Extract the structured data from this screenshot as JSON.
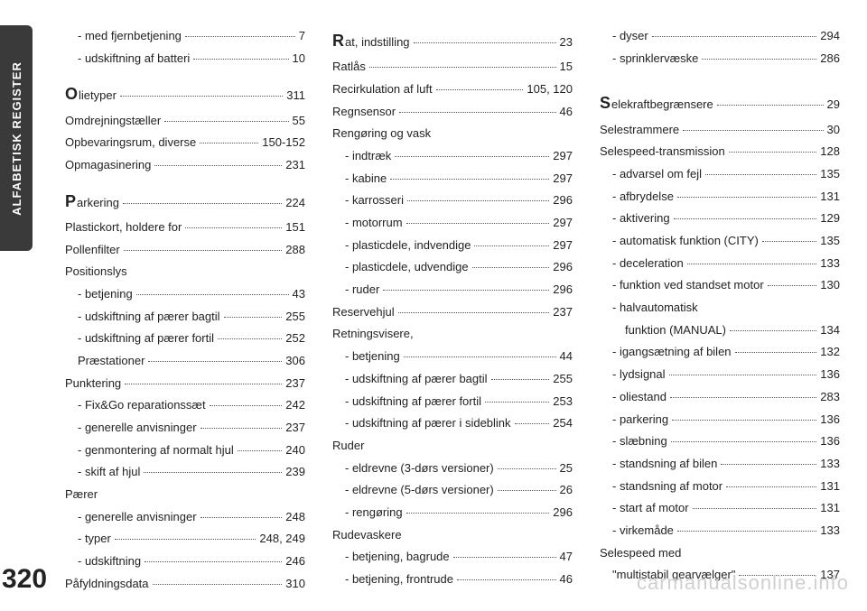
{
  "sideTab": "ALFABETISK REGISTER",
  "pageNumber": "320",
  "watermark": "carmanualsonline.info",
  "col1": [
    {
      "label": "- med fjernbetjening",
      "page": "7",
      "indent": 1
    },
    {
      "label": "- udskiftning af batteri",
      "page": "10",
      "indent": 1
    },
    {
      "type": "spacer"
    },
    {
      "cap": "O",
      "label": "lietyper",
      "page": "311"
    },
    {
      "label": "Omdrejningstæller",
      "page": "55"
    },
    {
      "label": "Opbevaringsrum, diverse",
      "page": "150-152"
    },
    {
      "label": "Opmagasinering",
      "page": "231"
    },
    {
      "type": "spacer"
    },
    {
      "cap": "P",
      "label": "arkering",
      "page": "224"
    },
    {
      "label": "Plastickort, holdere for",
      "page": "151"
    },
    {
      "label": "Pollenfilter",
      "page": "288"
    },
    {
      "label": "Positionslys",
      "nopg": true
    },
    {
      "label": "- betjening",
      "page": "43",
      "indent": 1
    },
    {
      "label": "- udskiftning af pærer bagtil",
      "page": "255",
      "indent": 1
    },
    {
      "label": "- udskiftning af pærer fortil",
      "page": "252",
      "indent": 1
    },
    {
      "label": "Præstationer",
      "page": "306",
      "indent": 1
    },
    {
      "label": "Punktering",
      "page": "237"
    },
    {
      "label": "- Fix&Go reparationssæt",
      "page": "242",
      "indent": 1
    },
    {
      "label": "- generelle anvisninger",
      "page": "237",
      "indent": 1
    },
    {
      "label": "- genmontering af normalt hjul",
      "page": "240",
      "indent": 1
    },
    {
      "label": "- skift af hjul",
      "page": "239",
      "indent": 1
    },
    {
      "label": "Pærer",
      "nopg": true
    },
    {
      "label": "- generelle anvisninger",
      "page": "248",
      "indent": 1
    },
    {
      "label": "- typer",
      "page": "248, 249",
      "indent": 1
    },
    {
      "label": "- udskiftning",
      "page": "246",
      "indent": 1
    },
    {
      "label": "Påfyldningsdata",
      "page": "310"
    }
  ],
  "col2": [
    {
      "cap": "R",
      "label": "at, indstilling",
      "page": "23"
    },
    {
      "label": "Ratlås",
      "page": "15"
    },
    {
      "label": "Recirkulation af luft",
      "page": "105, 120"
    },
    {
      "label": "Regnsensor",
      "page": "46"
    },
    {
      "label": "Rengøring og vask",
      "nopg": true
    },
    {
      "label": "- indtræk",
      "page": "297",
      "indent": 1
    },
    {
      "label": "- kabine",
      "page": "297",
      "indent": 1
    },
    {
      "label": "- karrosseri",
      "page": "296",
      "indent": 1
    },
    {
      "label": "- motorrum",
      "page": "297",
      "indent": 1
    },
    {
      "label": "- plasticdele, indvendige",
      "page": "297",
      "indent": 1
    },
    {
      "label": "- plasticdele, udvendige",
      "page": "296",
      "indent": 1
    },
    {
      "label": "- ruder",
      "page": "296",
      "indent": 1
    },
    {
      "label": "Reservehjul",
      "page": "237"
    },
    {
      "label": "Retningsvisere,",
      "nopg": true
    },
    {
      "label": "- betjening",
      "page": "44",
      "indent": 1
    },
    {
      "label": "- udskiftning af pærer bagtil",
      "page": "255",
      "indent": 1
    },
    {
      "label": "- udskiftning af pærer fortil",
      "page": "253",
      "indent": 1
    },
    {
      "label": "- udskiftning af pærer i sideblink",
      "page": "254",
      "indent": 1
    },
    {
      "label": "Ruder",
      "nopg": true
    },
    {
      "label": "- eldrevne (3-dørs versioner)",
      "page": "25",
      "indent": 1
    },
    {
      "label": "- eldrevne (5-dørs versioner)",
      "page": "26",
      "indent": 1
    },
    {
      "label": "- rengøring",
      "page": "296",
      "indent": 1
    },
    {
      "label": "Rudevaskere",
      "nopg": true
    },
    {
      "label": "- betjening, bagrude",
      "page": "47",
      "indent": 1
    },
    {
      "label": "- betjening, frontrude",
      "page": "46",
      "indent": 1
    }
  ],
  "col3": [
    {
      "label": "- dyser",
      "page": "294",
      "indent": 1
    },
    {
      "label": "- sprinklervæske",
      "page": "286",
      "indent": 1
    },
    {
      "type": "spacer"
    },
    {
      "type": "spacer"
    },
    {
      "cap": "S",
      "label": "elekraftbegrænsere",
      "page": "29"
    },
    {
      "label": "Selestrammere",
      "page": "30"
    },
    {
      "label": "Selespeed-transmission",
      "page": "128"
    },
    {
      "label": "- advarsel om fejl",
      "page": "135",
      "indent": 1
    },
    {
      "label": "- afbrydelse",
      "page": "131",
      "indent": 1
    },
    {
      "label": "- aktivering",
      "page": "129",
      "indent": 1
    },
    {
      "label": "- automatisk funktion (CITY)",
      "page": "135",
      "indent": 1
    },
    {
      "label": "- deceleration",
      "page": "133",
      "indent": 1
    },
    {
      "label": "- funktion ved standset motor",
      "page": "130",
      "indent": 1
    },
    {
      "label": "- halvautomatisk",
      "nopg": true,
      "indent": 1
    },
    {
      "label": "funktion (MANUAL)",
      "page": "134",
      "indent": 2
    },
    {
      "label": "- igangsætning af bilen",
      "page": "132",
      "indent": 1
    },
    {
      "label": "- lydsignal",
      "page": "136",
      "indent": 1
    },
    {
      "label": "- oliestand",
      "page": "283",
      "indent": 1
    },
    {
      "label": "- parkering",
      "page": "136",
      "indent": 1
    },
    {
      "label": "- slæbning",
      "page": "136",
      "indent": 1
    },
    {
      "label": "- standsning af bilen",
      "page": "133",
      "indent": 1
    },
    {
      "label": "- standsning af motor",
      "page": "131",
      "indent": 1
    },
    {
      "label": "- start af motor",
      "page": "131",
      "indent": 1
    },
    {
      "label": "- virkemåde",
      "page": "133",
      "indent": 1
    },
    {
      "label": "Selespeed med",
      "nopg": true
    },
    {
      "label": "\"multistabil gearvælger\"",
      "page": "137",
      "indent": 1
    }
  ]
}
